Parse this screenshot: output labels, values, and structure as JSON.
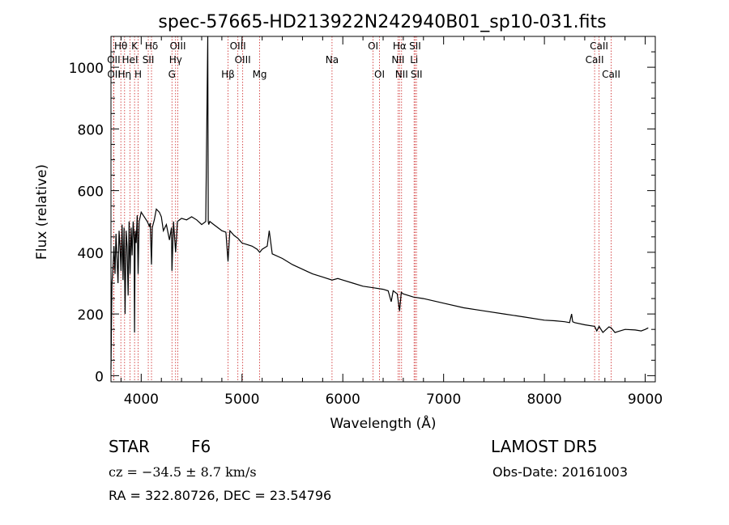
{
  "chart_data": {
    "type": "line",
    "title": "spec-57665-HD213922N242940B01_sp10-031.fits",
    "xlabel": "Wavelength (Å)",
    "ylabel": "Flux (relative)",
    "xlim": [
      3700,
      9100
    ],
    "ylim": [
      -20,
      1100
    ],
    "x_ticks": [
      4000,
      5000,
      6000,
      7000,
      8000,
      9000
    ],
    "y_ticks": [
      0,
      200,
      400,
      600,
      800,
      1000
    ],
    "grid": false,
    "line_color": "#000000",
    "marker_color": "#cc2222",
    "reference_lines": [
      {
        "label": "Hθ",
        "x": 3798,
        "row": 0
      },
      {
        "label": "OII",
        "x": 3727,
        "row": 1
      },
      {
        "label": "OII",
        "x": 3729,
        "row": 2
      },
      {
        "label": "Hη",
        "x": 3835,
        "row": 2
      },
      {
        "label": "K",
        "x": 3934,
        "row": 0
      },
      {
        "label": "HeI",
        "x": 3889,
        "row": 1
      },
      {
        "label": "H",
        "x": 3969,
        "row": 2
      },
      {
        "label": "Hδ",
        "x": 4102,
        "row": 0
      },
      {
        "label": "SII",
        "x": 4070,
        "row": 1
      },
      {
        "label": "OIII",
        "x": 4363,
        "row": 0
      },
      {
        "label": "Hγ",
        "x": 4341,
        "row": 1
      },
      {
        "label": "G",
        "x": 4305,
        "row": 2
      },
      {
        "label": "OIII",
        "x": 4959,
        "row": 0
      },
      {
        "label": "OIII",
        "x": 5007,
        "row": 1
      },
      {
        "label": "Hβ",
        "x": 4861,
        "row": 2
      },
      {
        "label": "Mg",
        "x": 5175,
        "row": 2
      },
      {
        "label": "Na",
        "x": 5893,
        "row": 1
      },
      {
        "label": "OI",
        "x": 6300,
        "row": 0
      },
      {
        "label": "OI",
        "x": 6364,
        "row": 2
      },
      {
        "label": "Hα",
        "x": 6563,
        "row": 0
      },
      {
        "label": "NII",
        "x": 6548,
        "row": 1
      },
      {
        "label": "NII",
        "x": 6583,
        "row": 2
      },
      {
        "label": "SII",
        "x": 6717,
        "row": 0
      },
      {
        "label": "Li",
        "x": 6707,
        "row": 1
      },
      {
        "label": "SII",
        "x": 6731,
        "row": 2
      },
      {
        "label": "CaII",
        "x": 8542,
        "row": 0
      },
      {
        "label": "CaII",
        "x": 8498,
        "row": 1
      },
      {
        "label": "CaII",
        "x": 8662,
        "row": 2
      }
    ],
    "series": [
      {
        "x": [
          3700,
          3710,
          3720,
          3730,
          3740,
          3750,
          3760,
          3770,
          3780,
          3790,
          3800,
          3810,
          3820,
          3830,
          3840,
          3850,
          3860,
          3870,
          3880,
          3890,
          3900,
          3910,
          3920,
          3930,
          3934,
          3940,
          3950,
          3960,
          3969,
          3980,
          3990,
          4000,
          4020,
          4040,
          4060,
          4080,
          4090,
          4102,
          4110,
          4130,
          4150,
          4180,
          4200,
          4220,
          4250,
          4280,
          4300,
          4305,
          4320,
          4341,
          4360,
          4400,
          4450,
          4500,
          4550,
          4600,
          4640,
          4660,
          4665,
          4670,
          4680,
          4720,
          4760,
          4800,
          4840,
          4861,
          4880,
          4920,
          4960,
          5000,
          5050,
          5100,
          5150,
          5175,
          5200,
          5250,
          5270,
          5300,
          5400,
          5500,
          5600,
          5700,
          5800,
          5893,
          5950,
          6000,
          6100,
          6200,
          6300,
          6400,
          6450,
          6480,
          6500,
          6520,
          6540,
          6563,
          6580,
          6600,
          6700,
          6800,
          7000,
          7200,
          7400,
          7600,
          7800,
          8000,
          8100,
          8200,
          8250,
          8270,
          8280,
          8300,
          8400,
          8498,
          8520,
          8542,
          8580,
          8640,
          8662,
          8700,
          8800,
          8900,
          8960,
          9000,
          9030
        ],
        "values": [
          20,
          300,
          350,
          420,
          330,
          460,
          380,
          300,
          470,
          420,
          340,
          490,
          310,
          480,
          200,
          470,
          420,
          260,
          500,
          330,
          480,
          390,
          500,
          440,
          140,
          470,
          430,
          520,
          330,
          500,
          515,
          530,
          520,
          510,
          500,
          485,
          495,
          360,
          480,
          505,
          540,
          530,
          515,
          470,
          490,
          440,
          480,
          340,
          500,
          400,
          500,
          510,
          505,
          515,
          505,
          490,
          500,
          1110,
          500,
          490,
          500,
          490,
          480,
          470,
          465,
          370,
          470,
          455,
          445,
          430,
          425,
          420,
          410,
          400,
          410,
          420,
          470,
          395,
          380,
          360,
          345,
          330,
          320,
          310,
          315,
          310,
          300,
          290,
          285,
          280,
          275,
          240,
          275,
          270,
          265,
          210,
          270,
          265,
          255,
          250,
          235,
          220,
          210,
          200,
          190,
          180,
          178,
          175,
          172,
          200,
          175,
          172,
          165,
          160,
          145,
          160,
          140,
          158,
          155,
          140,
          150,
          148,
          145,
          150,
          155
        ]
      }
    ]
  },
  "info": {
    "object_class": "STAR",
    "subclass": "F6",
    "survey": "LAMOST DR5",
    "redshift_text": "cz = −34.5 ± 8.7 km/s",
    "obs_date": "Obs-Date: 20161003",
    "coords": "RA = 322.80726, DEC =  23.54796"
  }
}
